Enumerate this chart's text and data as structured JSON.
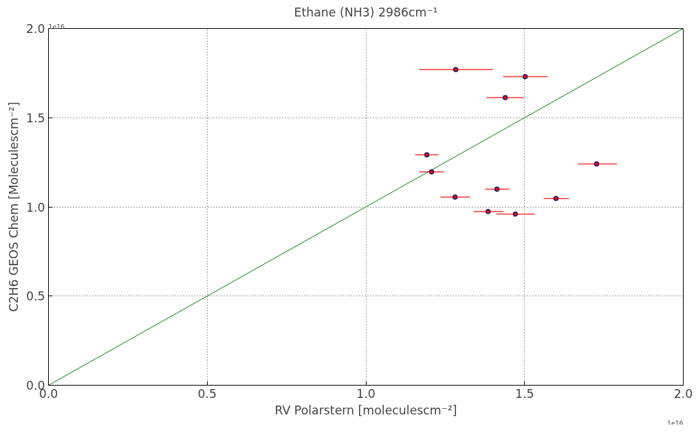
{
  "chart_data": {
    "type": "scatter",
    "title": "Ethane (NH3) 2986cm⁻¹",
    "xlabel": "RV Polarstern [moleculescm⁻²]",
    "ylabel": "C2H6 GEOS Chem [Moleculescm⁻²]",
    "xlim": [
      0,
      2.0
    ],
    "ylim": [
      0,
      2.0
    ],
    "xticks": [
      {
        "value": 0,
        "label": "0.0"
      },
      0.5,
      {
        "value": 1,
        "label": "1.0"
      },
      1.5,
      {
        "value": 2,
        "label": "2.0"
      }
    ],
    "yticks": [
      {
        "value": 0,
        "label": "0.0"
      },
      0.5,
      {
        "value": 1,
        "label": "1.0"
      },
      1.5,
      {
        "value": 2,
        "label": "2.0"
      }
    ],
    "grid": true,
    "marker": "circle",
    "annotations": [
      "1e16",
      "1e16"
    ],
    "series": [
      {
        "type": "line",
        "marker": "none",
        "color": "#008000",
        "x": [
          0,
          2.0
        ],
        "values": [
          0,
          2.0
        ]
      },
      {
        "color": "#ff0000",
        "x": [
          1.283,
          1.502,
          1.439,
          1.192,
          1.207,
          1.727,
          1.413,
          1.281,
          1.599,
          1.385,
          1.471
        ],
        "values": [
          1.77,
          1.73,
          1.613,
          1.292,
          1.197,
          1.241,
          1.099,
          1.055,
          1.047,
          0.974,
          0.96
        ],
        "xerrors": [
          [
            1.168,
            1.4
          ],
          [
            1.432,
            1.573
          ],
          [
            1.38,
            1.497
          ],
          [
            1.155,
            1.229
          ],
          [
            1.168,
            1.246
          ],
          [
            1.668,
            1.792
          ],
          [
            1.376,
            1.452
          ],
          [
            1.235,
            1.328
          ],
          [
            1.56,
            1.64
          ],
          [
            1.339,
            1.434
          ],
          [
            1.411,
            1.532
          ]
        ]
      }
    ]
  }
}
